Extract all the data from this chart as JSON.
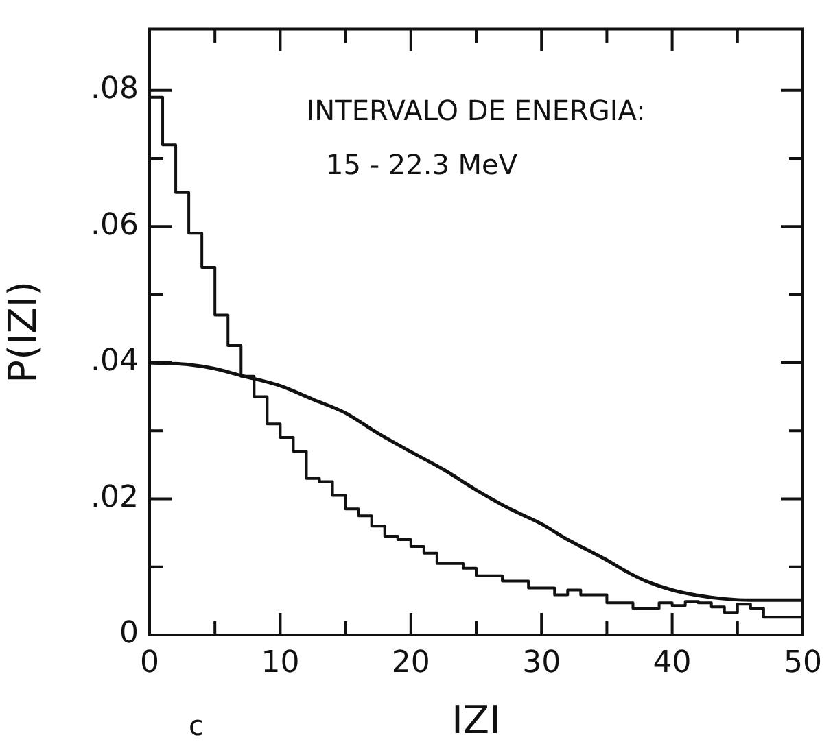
{
  "chart_data": {
    "type": "line",
    "xlabel": "IZI",
    "ylabel": "P(IZI)",
    "annotations": [
      "INTERVALO DE ENERGIA:",
      "15 - 22.3 MeV",
      "c"
    ],
    "xlim": [
      0,
      50
    ],
    "ylim": [
      0,
      0.089
    ],
    "xticks": [
      0,
      {
        "value": 5,
        "label": null
      },
      10,
      {
        "value": 15,
        "label": null
      },
      20,
      {
        "value": 25,
        "label": null
      },
      30,
      {
        "value": 35,
        "label": null
      },
      40,
      {
        "value": 45,
        "label": null
      },
      50
    ],
    "yticks": [
      0,
      {
        "value": 0.01,
        "label": null
      },
      {
        "value": 0.02,
        "label": ".02"
      },
      {
        "value": 0.03,
        "label": null
      },
      {
        "value": 0.04,
        "label": ".04"
      },
      {
        "value": 0.05,
        "label": null
      },
      {
        "value": 0.06,
        "label": ".06"
      },
      {
        "value": 0.07,
        "label": null
      },
      {
        "value": 0.08,
        "label": ".08"
      }
    ],
    "grid": false,
    "legend": false,
    "series": [
      {
        "type": "step",
        "color": "#111111",
        "x": [
          0,
          1,
          2,
          3,
          4,
          5,
          6,
          7,
          8,
          9,
          10,
          11,
          12,
          13,
          14,
          15,
          16,
          17,
          18,
          19,
          20,
          21,
          22,
          23,
          24,
          25,
          26,
          27,
          28,
          29,
          30,
          31,
          32,
          33,
          34,
          35,
          36,
          37,
          38,
          39,
          40,
          41,
          42,
          43,
          44,
          45,
          46,
          47,
          48,
          49,
          50
        ],
        "values": [
          0.08,
          0.079,
          0.072,
          0.065,
          0.059,
          0.054,
          0.047,
          0.0425,
          0.038,
          0.035,
          0.031,
          0.029,
          0.027,
          0.023,
          0.0225,
          0.0205,
          0.0185,
          0.0175,
          0.016,
          0.0145,
          0.014,
          0.013,
          0.012,
          0.0105,
          0.0105,
          0.0098,
          0.0087,
          0.0087,
          0.0079,
          0.0079,
          0.0069,
          0.0069,
          0.0059,
          0.0066,
          0.0059,
          0.0059,
          0.0047,
          0.0047,
          0.0039,
          0.0039,
          0.0047,
          0.0043,
          0.0049,
          0.0047,
          0.0041,
          0.0033,
          0.0045,
          0.0039,
          0.0026,
          0.0026,
          0.0026
        ]
      },
      {
        "color": "#111111",
        "x": [
          0,
          3,
          5,
          7,
          10,
          12.5,
          15,
          17.5,
          20,
          22.5,
          25,
          27.5,
          30,
          32,
          33,
          35,
          36.5,
          38,
          40,
          42,
          44,
          46,
          48,
          50
        ],
        "values": [
          0.04,
          0.0397,
          0.0391,
          0.0381,
          0.0366,
          0.0346,
          0.0326,
          0.0296,
          0.0269,
          0.0243,
          0.0213,
          0.0186,
          0.0163,
          0.014,
          0.013,
          0.011,
          0.0093,
          0.0079,
          0.0066,
          0.0058,
          0.0053,
          0.0051,
          0.0051,
          0.0051
        ]
      }
    ]
  }
}
